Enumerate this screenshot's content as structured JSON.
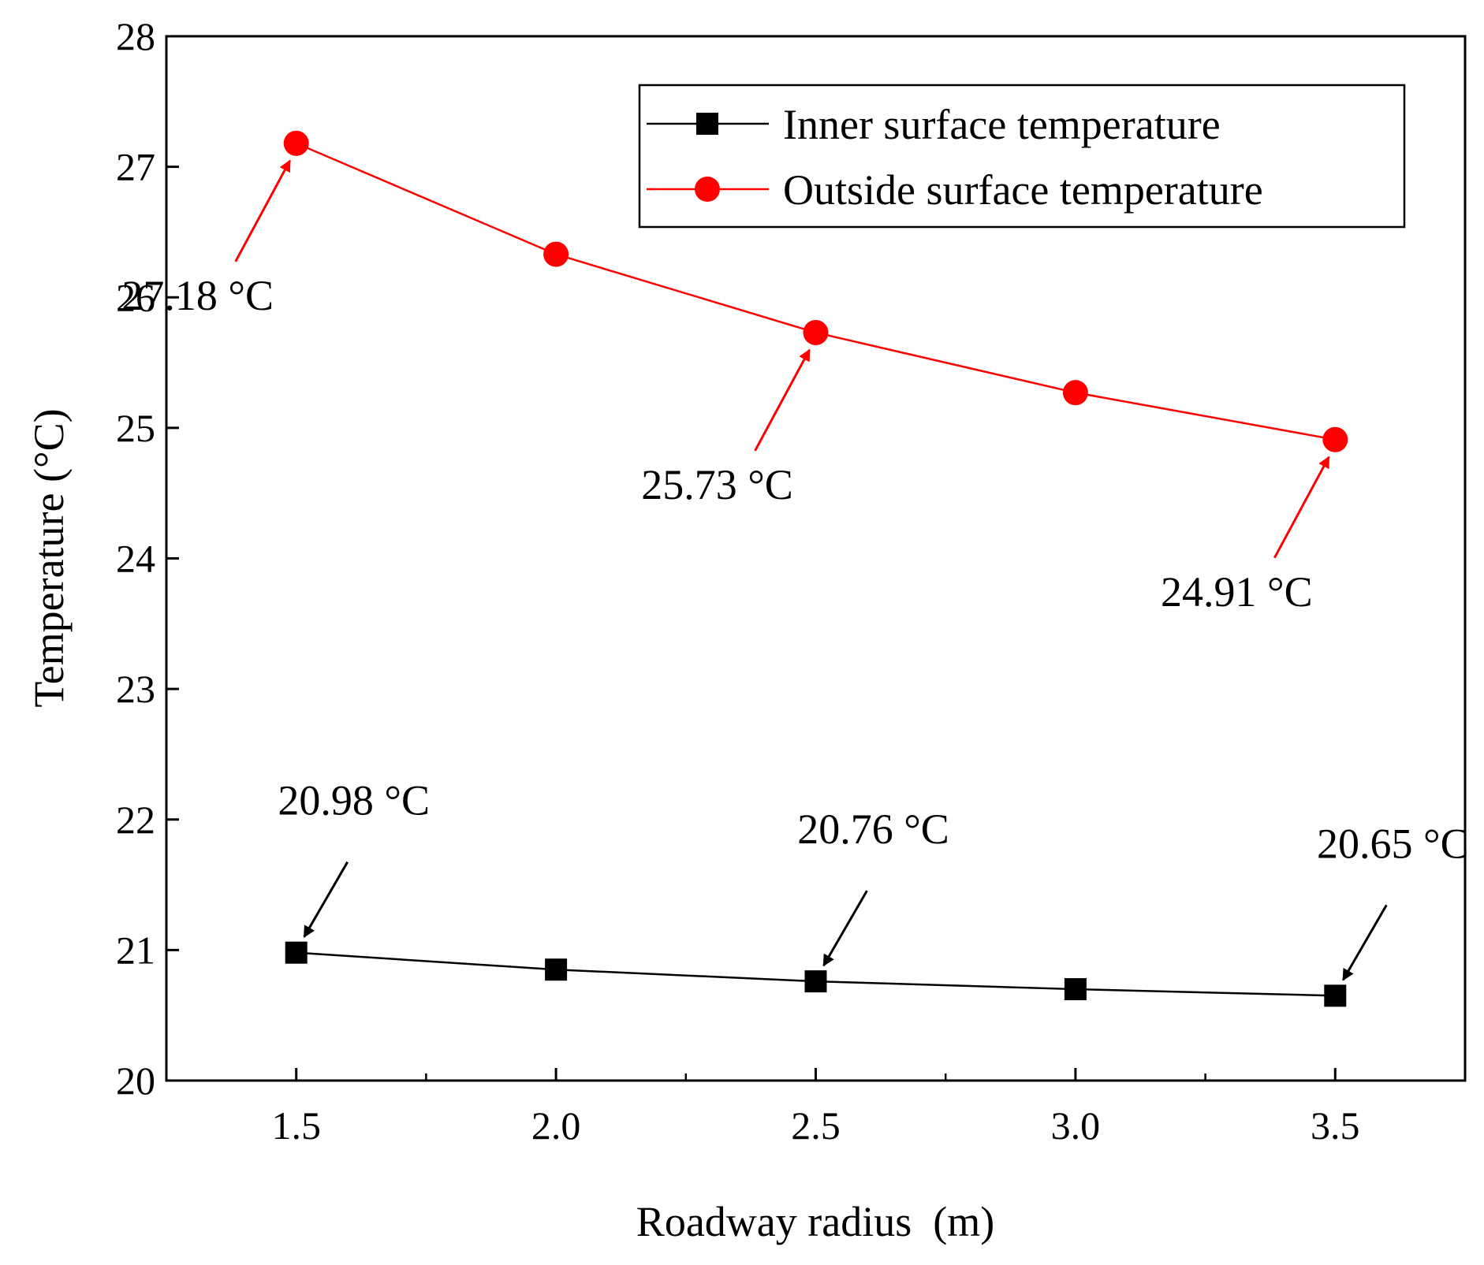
{
  "chart_data": {
    "type": "line",
    "xlabel": "Roadway radius  (m)",
    "ylabel": "Temperature (°C)",
    "xlim": [
      1.25,
      3.75
    ],
    "ylim": [
      20,
      28
    ],
    "x_ticks": [
      1.5,
      2.0,
      2.5,
      3.0,
      3.5
    ],
    "x_tick_labels": [
      "1.5",
      "2.0",
      "2.5",
      "3.0",
      "3.5"
    ],
    "x_minor_ticks": [
      1.75,
      2.25,
      2.75,
      3.25
    ],
    "y_ticks": [
      20,
      21,
      22,
      23,
      24,
      25,
      26,
      27,
      28
    ],
    "y_tick_labels": [
      "20",
      "21",
      "22",
      "23",
      "24",
      "25",
      "26",
      "27",
      "28"
    ],
    "x": [
      1.5,
      2.0,
      2.5,
      3.0,
      3.5
    ],
    "series": [
      {
        "name": "Inner surface temperature",
        "color": "#000000",
        "marker": "square",
        "values": [
          20.98,
          20.85,
          20.76,
          20.7,
          20.65
        ]
      },
      {
        "name": "Outside surface temperature",
        "color": "#ff0000",
        "marker": "circle",
        "values": [
          27.18,
          26.33,
          25.73,
          25.27,
          24.91
        ]
      }
    ],
    "legend": {
      "placement": "top-right"
    },
    "grid": false,
    "annotations": [
      {
        "series": 1,
        "x": 1.5,
        "y": 27.18,
        "text": "27.18 °C",
        "color": "#ff0000",
        "label_side": "below-left"
      },
      {
        "series": 1,
        "x": 2.5,
        "y": 25.73,
        "text": "25.73 °C",
        "color": "#ff0000",
        "label_side": "below-left"
      },
      {
        "series": 1,
        "x": 3.5,
        "y": 24.91,
        "text": "24.91 °C",
        "color": "#ff0000",
        "label_side": "below-left"
      },
      {
        "series": 0,
        "x": 1.5,
        "y": 20.98,
        "text": "20.98 °C",
        "color": "#000000",
        "label_side": "above-right"
      },
      {
        "series": 0,
        "x": 2.5,
        "y": 20.76,
        "text": "20.76 °C",
        "color": "#000000",
        "label_side": "above-right"
      },
      {
        "series": 0,
        "x": 3.5,
        "y": 20.65,
        "text": "20.65 °C",
        "color": "#000000",
        "label_side": "above-right"
      }
    ]
  }
}
